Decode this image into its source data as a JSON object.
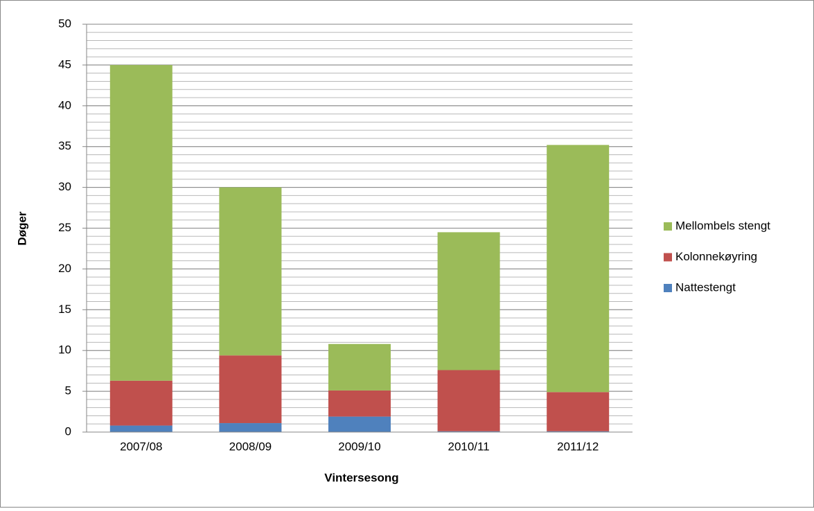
{
  "chart_data": {
    "type": "stacked_bar",
    "x_label": "Vintersesong",
    "y_label": "Døger",
    "categories": [
      "2007/08",
      "2008/09",
      "2009/10",
      "2010/11",
      "2011/12"
    ],
    "series": [
      {
        "name": "Nattestengt",
        "color": "#4f81bd",
        "values": [
          0.8,
          1.1,
          1.9,
          0.1,
          0.1
        ]
      },
      {
        "name": "Kolonnekøyring",
        "color": "#c0504d",
        "values": [
          5.5,
          8.3,
          3.2,
          7.5,
          4.8
        ]
      },
      {
        "name": "Mellombels stengt",
        "color": "#9bbb59",
        "values": [
          38.7,
          20.6,
          5.7,
          16.9,
          30.3
        ]
      }
    ],
    "ylim": [
      0,
      50
    ],
    "yticks": [
      0,
      5,
      10,
      15,
      20,
      25,
      30,
      35,
      40,
      45,
      50
    ],
    "grid": true,
    "minor_grid": 1,
    "legend": "right"
  }
}
